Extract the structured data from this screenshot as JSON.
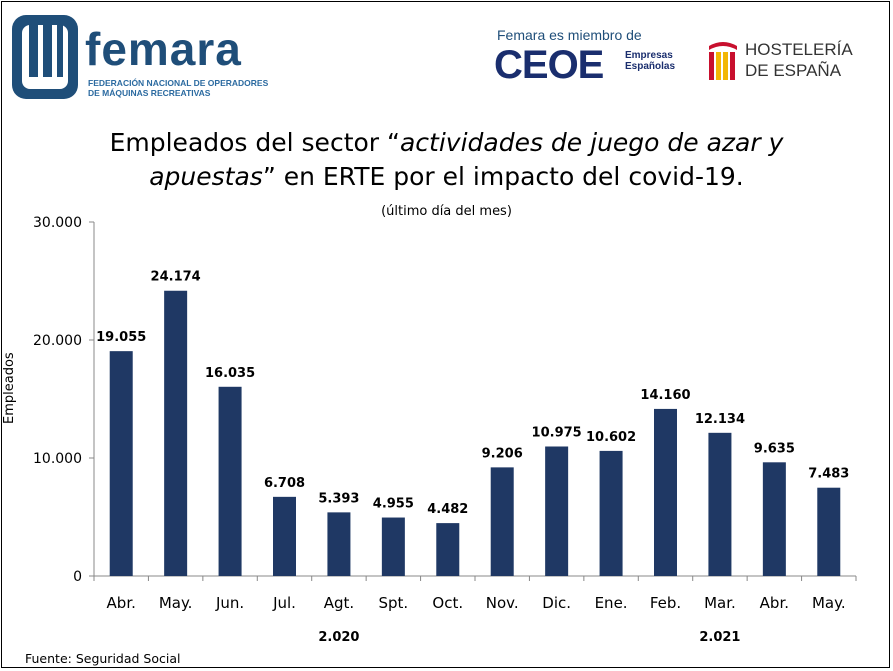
{
  "header": {
    "femara_logo_text": "femara",
    "femara_subtitle_line1": "FEDERACIÓN NACIONAL DE OPERADORES",
    "femara_subtitle_line2": "DE MÁQUINAS RECREATIVAS",
    "member_text": "Femara es miembro de",
    "ceoe_logo_text": "CEOE",
    "ceoe_sub_line1": "Empresas",
    "ceoe_sub_line2": "Españolas",
    "hosteleria_line1": "HOSTELERÍA",
    "hosteleria_line2": "DE ESPAÑA"
  },
  "chart_data": {
    "type": "bar",
    "title_part1": "Empleados del sector “",
    "title_italic1": "actividades de juego de azar y",
    "title_italic2": "apuestas",
    "title_part2": "” en ERTE por el impacto del covid-19.",
    "subtitle": "(último día del mes)",
    "ylabel": "Empleados",
    "xlabel": "",
    "source": "Fuente: Seguridad Social",
    "categories": [
      "Abr.",
      "May.",
      "Jun.",
      "Jul.",
      "Agt.",
      "Spt.",
      "Oct.",
      "Nov.",
      "Dic.",
      "Ene.",
      "Feb.",
      "Mar.",
      "Abr.",
      "May."
    ],
    "values": [
      19055,
      24174,
      16035,
      6708,
      5393,
      4955,
      4482,
      9206,
      10975,
      10602,
      14160,
      12134,
      9635,
      7483
    ],
    "value_labels": [
      "19.055",
      "24.174",
      "16.035",
      "6.708",
      "5.393",
      "4.955",
      "4.482",
      "9.206",
      "10.975",
      "10.602",
      "14.160",
      "12.134",
      "9.635",
      "7.483"
    ],
    "ylim": [
      0,
      30000
    ],
    "yticks": [
      0,
      10000,
      20000,
      30000
    ],
    "ytick_labels": [
      "0",
      "10.000",
      "20.000",
      "30.000"
    ],
    "year_groups": [
      {
        "label": "2.020",
        "start": 0,
        "end": 8
      },
      {
        "label": "2.021",
        "start": 9,
        "end": 13
      }
    ],
    "bar_color": "#1f3864",
    "grid": false
  }
}
